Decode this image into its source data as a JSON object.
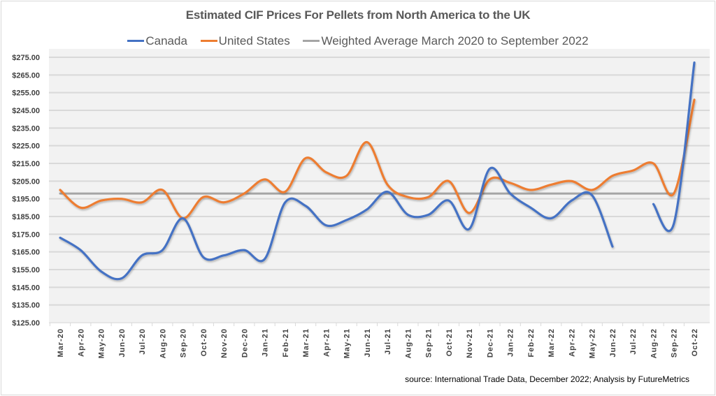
{
  "chart_data": {
    "type": "line",
    "title": "Estimated CIF Prices For Pellets from North America to the UK",
    "xlabel": "",
    "ylabel": "",
    "ylim": [
      125,
      275
    ],
    "yticks": [
      125,
      135,
      145,
      155,
      165,
      175,
      185,
      195,
      205,
      215,
      225,
      235,
      245,
      255,
      265,
      275
    ],
    "ytick_labels": [
      "$125.00",
      "$135.00",
      "$145.00",
      "$155.00",
      "$165.00",
      "$175.00",
      "$185.00",
      "$195.00",
      "$205.00",
      "$215.00",
      "$225.00",
      "$235.00",
      "$245.00",
      "$255.00",
      "$265.00",
      "$275.00"
    ],
    "grid": true,
    "legend_position": "top-center",
    "categories": [
      "Mar-20",
      "Apr-20",
      "May-20",
      "Jun-20",
      "Jul-20",
      "Aug-20",
      "Sep-20",
      "Oct-20",
      "Nov-20",
      "Dec-20",
      "Jan-21",
      "Feb-21",
      "Mar-21",
      "Apr-21",
      "May-21",
      "Jun-21",
      "Jul-21",
      "Aug-21",
      "Sep-21",
      "Oct-21",
      "Nov-21",
      "Dec-21",
      "Jan-22",
      "Feb-22",
      "Mar-22",
      "Apr-22",
      "May-22",
      "Jun-22",
      "Jul-22",
      "Aug-22",
      "Sep-22",
      "Oct-22"
    ],
    "series": [
      {
        "name": "Canada",
        "color": "#4472c4",
        "values": [
          173,
          166,
          154,
          150,
          163,
          166,
          184,
          162,
          163,
          166,
          161,
          193,
          191,
          180,
          183,
          189,
          199,
          186,
          186,
          194,
          178,
          212,
          198,
          190,
          184,
          194,
          197,
          168,
          null,
          192,
          181,
          272
        ]
      },
      {
        "name": "United States",
        "color": "#ed7d31",
        "values": [
          200,
          190,
          194,
          195,
          193,
          200,
          184,
          196,
          193,
          198,
          206,
          199,
          218,
          210,
          208,
          227,
          203,
          196,
          196,
          205,
          187,
          206,
          204,
          200,
          203,
          205,
          200,
          208,
          211,
          215,
          198,
          251
        ]
      },
      {
        "name": "Weighted Average March 2020 to September 2022",
        "color": "#a5a5a5",
        "values": [
          198,
          198,
          198,
          198,
          198,
          198,
          198,
          198,
          198,
          198,
          198,
          198,
          198,
          198,
          198,
          198,
          198,
          198,
          198,
          198,
          198,
          198,
          198,
          198,
          198,
          198,
          198,
          198,
          198,
          198,
          198
        ]
      }
    ],
    "annotations": [
      "source: International Trade Data, December 2022; Analysis by FutureMetrics"
    ]
  },
  "legend": [
    {
      "label": "Canada",
      "color": "#4472c4"
    },
    {
      "label": "United States",
      "color": "#ed7d31"
    },
    {
      "label": "Weighted Average March 2020 to September 2022",
      "color": "#a5a5a5"
    }
  ],
  "source_note": "source: International Trade Data, December 2022; Analysis by FutureMetrics",
  "colors": {
    "plot_background": "#f2f2f2",
    "gridline": "#d9d9d9",
    "text": "#595959"
  }
}
